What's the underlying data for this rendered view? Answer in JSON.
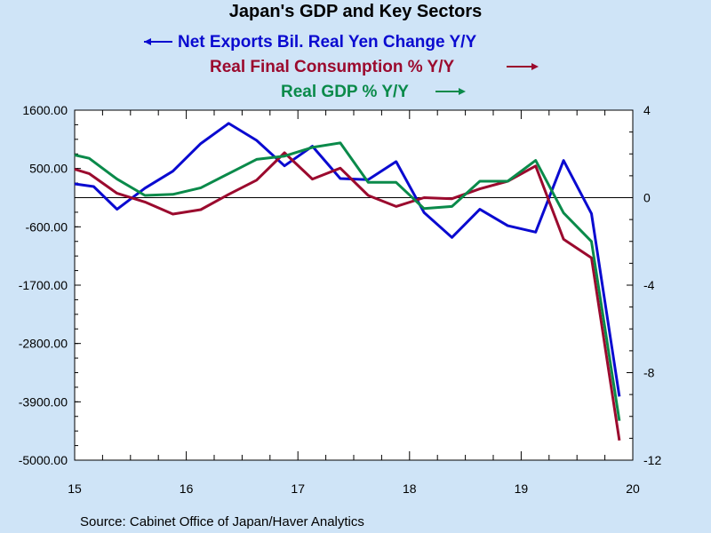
{
  "chart_data": {
    "type": "line",
    "title": "Japan's GDP and Key Sectors",
    "source": "Source:  Cabinet Office of Japan/Haver Analytics",
    "x_tick_labels": [
      "15",
      "16",
      "17",
      "18",
      "19",
      "20"
    ],
    "x_range": [
      2015.0,
      2020.0
    ],
    "left_axis": {
      "range": [
        -5000,
        1600
      ],
      "ticks": [
        1600,
        500,
        -600,
        -1700,
        -2800,
        -3900,
        -5000
      ],
      "tick_labels": [
        "1600.00",
        "500.00",
        "-600.00",
        "-1700.00",
        "-2800.00",
        "-3900.00",
        "-5000.00"
      ]
    },
    "right_axis": {
      "range": [
        -12,
        4
      ],
      "ticks": [
        4,
        0,
        -4,
        -8,
        -12
      ],
      "tick_labels": [
        "4",
        "0",
        "-4",
        "-8",
        "-12"
      ]
    },
    "zero_line": 0,
    "series": [
      {
        "name": "Net Exports Bil. Real Yen Change Y/Y",
        "axis": "left",
        "legend_arrow": "left",
        "color": "#0a0ad0",
        "x": [
          2015.0,
          2015.17,
          2015.38,
          2015.63,
          2015.88,
          2016.13,
          2016.38,
          2016.63,
          2016.88,
          2017.13,
          2017.38,
          2017.63,
          2017.88,
          2018.13,
          2018.38,
          2018.63,
          2018.88,
          2019.13,
          2019.38,
          2019.63,
          2019.88
        ],
        "values": [
          210,
          160,
          -270,
          130,
          450,
          970,
          1350,
          1030,
          550,
          920,
          310,
          290,
          630,
          -330,
          -800,
          -270,
          -580,
          -700,
          650,
          -350,
          -3800
        ]
      },
      {
        "name": "Real Final Consumption % Y/Y",
        "axis": "right",
        "legend_arrow": "right",
        "color": "#9b0a2e",
        "x": [
          2015.0,
          2015.13,
          2015.38,
          2015.63,
          2015.88,
          2016.13,
          2016.38,
          2016.63,
          2016.88,
          2017.13,
          2017.38,
          2017.63,
          2017.88,
          2018.13,
          2018.38,
          2018.63,
          2018.88,
          2019.13,
          2019.38,
          2019.63,
          2019.88
        ],
        "values": [
          1.3,
          1.1,
          0.2,
          -0.2,
          -0.75,
          -0.55,
          0.15,
          0.8,
          2.05,
          0.85,
          1.35,
          0.1,
          -0.4,
          0.0,
          -0.05,
          0.4,
          0.75,
          1.45,
          -1.9,
          -2.75,
          -11.1
        ]
      },
      {
        "name": "Real GDP % Y/Y",
        "axis": "right",
        "legend_arrow": "right",
        "color": "#0a8a4a",
        "x": [
          2015.0,
          2015.13,
          2015.38,
          2015.63,
          2015.88,
          2016.13,
          2016.38,
          2016.63,
          2016.88,
          2017.13,
          2017.38,
          2017.63,
          2017.88,
          2018.13,
          2018.38,
          2018.63,
          2018.88,
          2019.13,
          2019.38,
          2019.63,
          2019.88
        ],
        "values": [
          1.95,
          1.8,
          0.85,
          0.1,
          0.15,
          0.45,
          1.1,
          1.75,
          1.9,
          2.3,
          2.5,
          0.7,
          0.7,
          -0.5,
          -0.4,
          0.75,
          0.75,
          1.7,
          -0.7,
          -2.0,
          -10.2
        ]
      }
    ]
  }
}
